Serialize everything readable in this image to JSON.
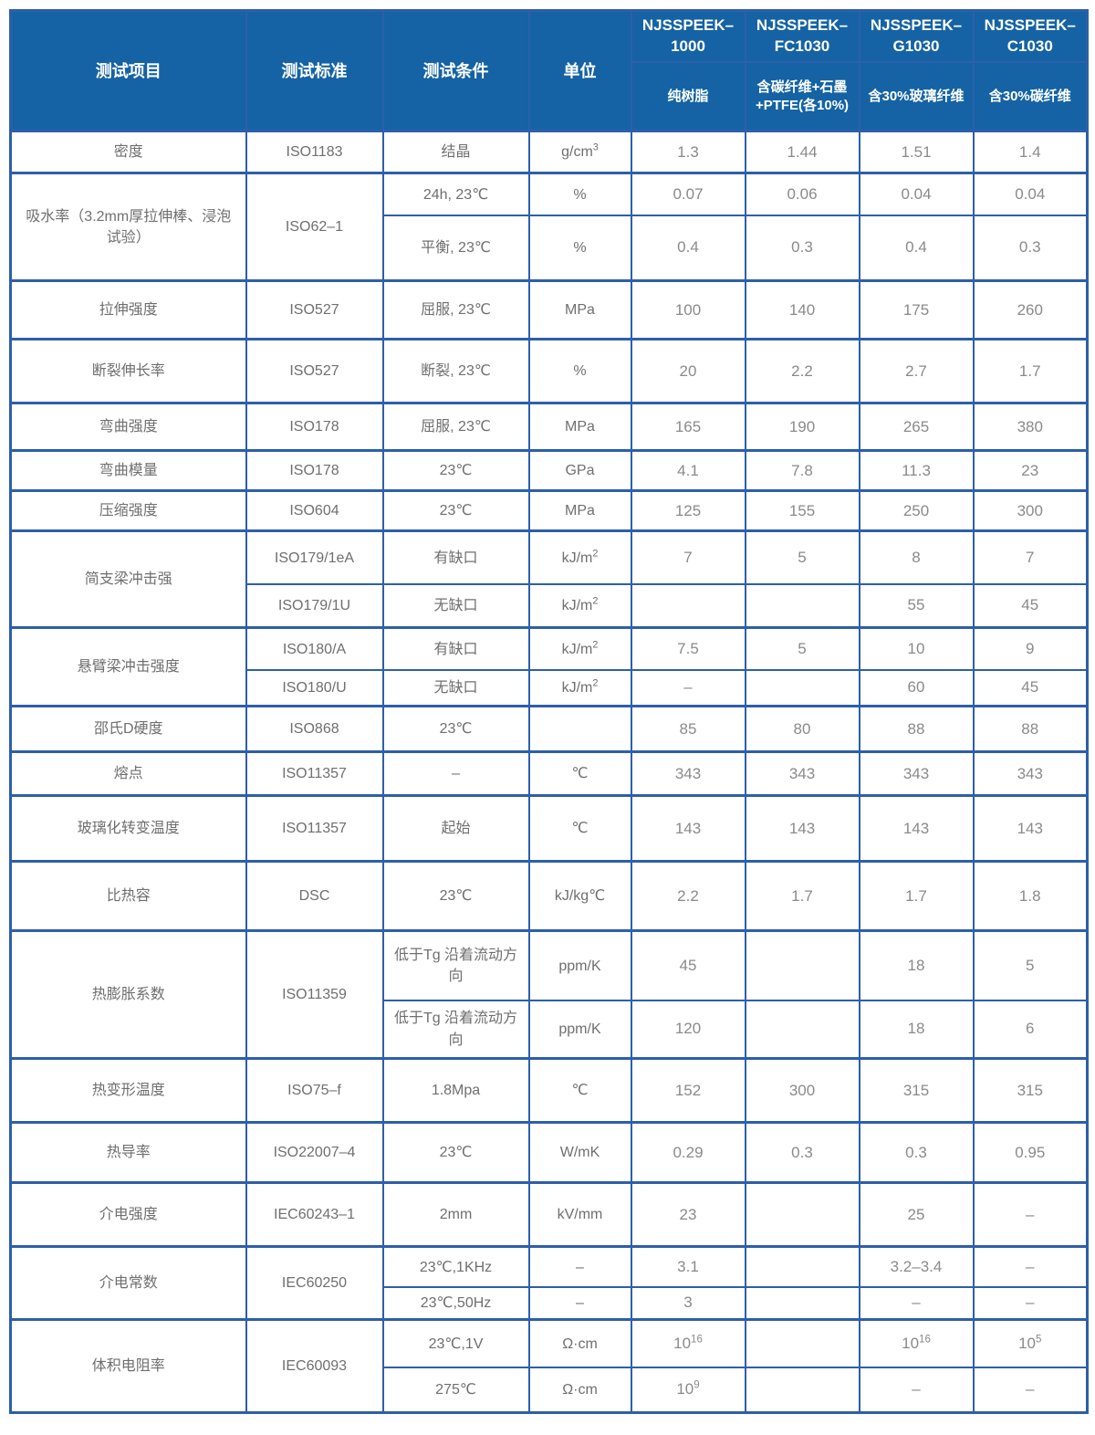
{
  "theme": {
    "header_bg": "#1563a4",
    "header_text": "#ffffff",
    "border": "#2c5fac",
    "header_divider": "#3c74b5",
    "body_text": "#6f6f6f",
    "value_text": "#8a8a8a",
    "page_bg": "#ffffff"
  },
  "table": {
    "columns": [
      "测试项目",
      "测试标准",
      "测试条件",
      "单位"
    ],
    "products": [
      {
        "name": "NJSSPEEK–1000",
        "desc": "纯树脂"
      },
      {
        "name": "NJSSPEEK–FC1030",
        "desc": "含碳纤维+石墨+PTFE(各10%)"
      },
      {
        "name": "NJSSPEEK–G1030",
        "desc": "含30%玻璃纤维"
      },
      {
        "name": "NJSSPEEK–C1030",
        "desc": "含30%碳纤维"
      }
    ],
    "row_groups": [
      {
        "item": "密度",
        "standard": "ISO1183",
        "subrows": [
          {
            "condition": "结晶",
            "unit": "g/cm^3",
            "values": [
              "1.3",
              "1.44",
              "1.51",
              "1.4"
            ]
          }
        ]
      },
      {
        "item": "吸水率（3.2mm厚拉伸棒、浸泡试验）",
        "standard": "ISO62–1",
        "subrows": [
          {
            "condition": "24h, 23℃",
            "unit": "%",
            "values": [
              "0.07",
              "0.06",
              "0.04",
              "0.04"
            ]
          },
          {
            "condition": "平衡, 23℃",
            "unit": "%",
            "values": [
              "0.4",
              "0.3",
              "0.4",
              "0.3"
            ]
          }
        ]
      },
      {
        "item": "拉伸强度",
        "standard": "ISO527",
        "subrows": [
          {
            "condition": "屈服, 23℃",
            "unit": "MPa",
            "values": [
              "100",
              "140",
              "175",
              "260"
            ]
          }
        ]
      },
      {
        "item": "断裂伸长率",
        "standard": "ISO527",
        "subrows": [
          {
            "condition": "断裂, 23℃",
            "unit": "%",
            "values": [
              "20",
              "2.2",
              "2.7",
              "1.7"
            ]
          }
        ]
      },
      {
        "item": "弯曲强度",
        "standard": "ISO178",
        "subrows": [
          {
            "condition": "屈服, 23℃",
            "unit": "MPa",
            "values": [
              "165",
              "190",
              "265",
              "380"
            ]
          }
        ]
      },
      {
        "item": "弯曲模量",
        "standard": "ISO178",
        "subrows": [
          {
            "condition": "23℃",
            "unit": "GPa",
            "values": [
              "4.1",
              "7.8",
              "11.3",
              "23"
            ]
          }
        ]
      },
      {
        "item": "压缩强度",
        "standard": "ISO604",
        "subrows": [
          {
            "condition": "23℃",
            "unit": "MPa",
            "values": [
              "125",
              "155",
              "250",
              "300"
            ]
          }
        ]
      },
      {
        "item": "简支梁冲击强",
        "subrows": [
          {
            "standard": "ISO179/1eA",
            "condition": "有缺口",
            "unit": "kJ/m^2",
            "values": [
              "7",
              "5",
              "8",
              "7"
            ]
          },
          {
            "standard": "ISO179/1U",
            "condition": "无缺口",
            "unit": "kJ/m^2",
            "values": [
              "",
              "",
              "55",
              "45"
            ]
          }
        ]
      },
      {
        "item": "悬臂梁冲击强度",
        "subrows": [
          {
            "standard": "ISO180/A",
            "condition": "有缺口",
            "unit": "kJ/m^2",
            "values": [
              "7.5",
              "5",
              "10",
              "9"
            ]
          },
          {
            "standard": "ISO180/U",
            "condition": "无缺口",
            "unit": "kJ/m^2",
            "values": [
              "–",
              "",
              "60",
              "45"
            ]
          }
        ]
      },
      {
        "item": "邵氏D硬度",
        "standard": "ISO868",
        "subrows": [
          {
            "condition": "23℃",
            "unit": "",
            "values": [
              "85",
              "80",
              "88",
              "88"
            ]
          }
        ]
      },
      {
        "item": "熔点",
        "standard": "ISO11357",
        "subrows": [
          {
            "condition": "–",
            "unit": "℃",
            "values": [
              "343",
              "343",
              "343",
              "343"
            ]
          }
        ]
      },
      {
        "item": "玻璃化转变温度",
        "standard": "ISO11357",
        "subrows": [
          {
            "condition": "起始",
            "unit": "℃",
            "values": [
              "143",
              "143",
              "143",
              "143"
            ]
          }
        ]
      },
      {
        "item": "比热容",
        "standard": "DSC",
        "subrows": [
          {
            "condition": "23℃",
            "unit": "kJ/kg℃",
            "values": [
              "2.2",
              "1.7",
              "1.7",
              "1.8"
            ]
          }
        ]
      },
      {
        "item": "热膨胀系数",
        "standard": "ISO11359",
        "subrows": [
          {
            "condition": "低于Tg 沿着流动方向",
            "unit": "ppm/K",
            "values": [
              "45",
              "",
              "18",
              "5"
            ]
          },
          {
            "condition": "低于Tg 沿着流动方向",
            "unit": "ppm/K",
            "values": [
              "120",
              "",
              "18",
              "6"
            ]
          }
        ]
      },
      {
        "item": "热变形温度",
        "standard": "ISO75–f",
        "subrows": [
          {
            "condition": "1.8Mpa",
            "unit": "℃",
            "values": [
              "152",
              "300",
              "315",
              "315"
            ]
          }
        ]
      },
      {
        "item": "热导率",
        "standard": "ISO22007–4",
        "subrows": [
          {
            "condition": "23℃",
            "unit": "W/mK",
            "values": [
              "0.29",
              "0.3",
              "0.3",
              "0.95"
            ]
          }
        ]
      },
      {
        "item": "介电强度",
        "standard": "IEC60243–1",
        "subrows": [
          {
            "condition": "2mm",
            "unit": "kV/mm",
            "values": [
              "23",
              "",
              "25",
              "–"
            ]
          }
        ]
      },
      {
        "item": "介电常数",
        "standard": "IEC60250",
        "subrows": [
          {
            "condition": "23℃,1KHz",
            "unit": "–",
            "values": [
              "3.1",
              "",
              "3.2–3.4",
              "–"
            ]
          },
          {
            "condition": "23℃,50Hz",
            "unit": "–",
            "values": [
              "3",
              "",
              "–",
              "–"
            ]
          }
        ]
      },
      {
        "item": "体积电阻率",
        "standard": "IEC60093",
        "subrows": [
          {
            "condition": "23℃,1V",
            "unit": "Ω·cm",
            "values": [
              "10^16",
              "",
              "10^16",
              "10^5"
            ]
          },
          {
            "condition": "275℃",
            "unit": "Ω·cm",
            "values": [
              "10^9",
              "",
              "–",
              "–"
            ]
          }
        ]
      }
    ]
  }
}
